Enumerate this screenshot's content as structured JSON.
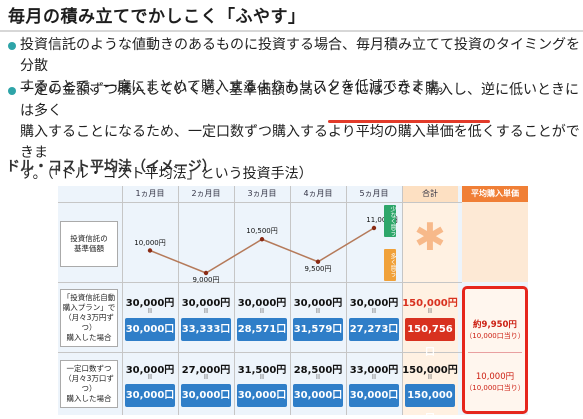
{
  "page": {
    "title": "毎月の積み立てでかしこく「ふやす」",
    "bullets": [
      {
        "line1": "投資信託のような値動きのあるものに投資する場合、毎月積み立てて投資のタイミングを分散",
        "line2": "することで、一度にまとめて購入するよりもリスクを低減できます。"
      },
      {
        "line1": "一定の金額ずつ購入していくと、基準価額の高いときには少なく購入し、逆に低いときには多く",
        "line2a": "購入することになるため、一定口数ずつ購入するより",
        "line2b": "平均の購入単価を低くする",
        "line2c": "ことができま",
        "line3": "す。（「ドル・コスト平均法」という投資手法）"
      }
    ],
    "section_title": "ドル・コスト平均法（イメージ）"
  },
  "table": {
    "months": [
      "1ヵ月目",
      "2ヵ月目",
      "3ヵ月目",
      "4ヵ月目",
      "5ヵ月目"
    ],
    "total_label": "合計",
    "avg_label": "平均購入単価",
    "row1_label": "投資信託の\n基準価額",
    "prices": [
      "10,000円",
      "9,000円",
      "10,500円",
      "9,500円",
      "11,000円"
    ],
    "price_values": [
      10000,
      9000,
      10500,
      9500,
      11000
    ],
    "tag_up": "少なく買う",
    "tag_down": "多く買う",
    "plan_a": {
      "label": "「投資信託自動\n購入プラン」で\n（月々3万円ずつ）\n購入した場合",
      "amounts": [
        "30,000円",
        "30,000円",
        "30,000円",
        "30,000円",
        "30,000円"
      ],
      "units": [
        "30,000口",
        "33,333口",
        "28,571口",
        "31,579口",
        "27,273口"
      ],
      "total_amount": "150,000円",
      "total_units": "150,756口",
      "avg": "約9,950円",
      "avg_sub": "（10,000口当り）"
    },
    "plan_b": {
      "label": "一定口数ずつ\n（月々3万口ずつ）\n購入した場合",
      "amounts": [
        "30,000円",
        "27,000円",
        "31,500円",
        "28,500円",
        "33,000円"
      ],
      "units": [
        "30,000口",
        "30,000口",
        "30,000口",
        "30,000口",
        "30,000口"
      ],
      "total_amount": "150,000円",
      "total_units": "150,000口",
      "avg": "10,000円",
      "avg_sub": "（10,000口当り）"
    }
  },
  "colors": {
    "accent_teal": "#2ea4a8",
    "blue_unit": "#2f7ec8",
    "red_unit": "#d8311f",
    "red_border": "#e6261c",
    "line_color": "#b57a5a",
    "marker_color": "#8a2a14"
  }
}
